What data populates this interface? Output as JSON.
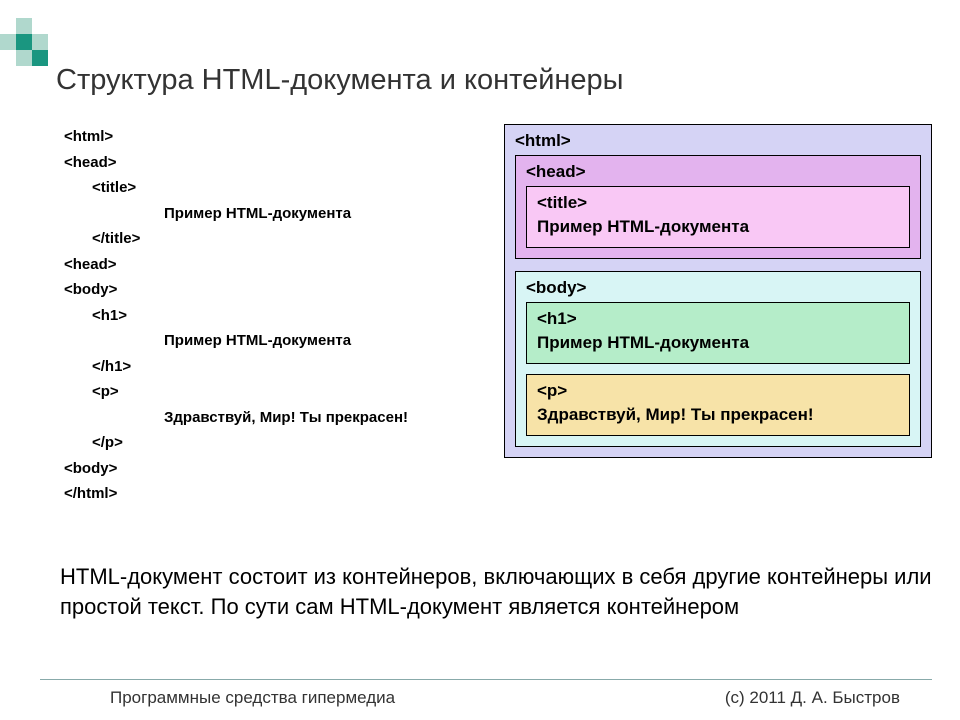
{
  "title": "Структура HTML-документа и контейнеры",
  "code": {
    "lines": [
      {
        "indent": "l1",
        "text": "<html>"
      },
      {
        "indent": "l1",
        "text": "<head>"
      },
      {
        "indent": "l2",
        "text": "<title>"
      },
      {
        "indent": "l4",
        "text": "Пример HTML-документа"
      },
      {
        "indent": "l2",
        "text": "</title>"
      },
      {
        "indent": "l1",
        "text": "<head>"
      },
      {
        "indent": "l1",
        "text": "<body>"
      },
      {
        "indent": "l2",
        "text": "<h1>"
      },
      {
        "indent": "l4",
        "text": "Пример HTML-документа"
      },
      {
        "indent": "l2",
        "text": "</h1>"
      },
      {
        "indent": "l2",
        "text": "<p>"
      },
      {
        "indent": "l4",
        "text": "Здравствуй, Мир! Ты прекрасен!"
      },
      {
        "indent": "l2",
        "text": "</p>"
      },
      {
        "indent": "l1",
        "text": "<body>"
      },
      {
        "indent": "l1",
        "text": "</html>"
      }
    ]
  },
  "diagram": {
    "html": {
      "label": "<html>",
      "bg": "#d5d3f5"
    },
    "head": {
      "label": "<head>",
      "bg": "#e3b3ee"
    },
    "titleBox": {
      "label": "<title>",
      "bg": "#f9c8f5",
      "content": "Пример HTML-документа"
    },
    "body": {
      "label": "<body>",
      "bg": "#d8f5f5"
    },
    "h1": {
      "label": "<h1>",
      "bg": "#b5edc9",
      "content": "Пример HTML-документа"
    },
    "p": {
      "label": "<p>",
      "bg": "#f7e3a8",
      "content": "Здравствуй, Мир! Ты прекрасен!"
    }
  },
  "paragraph": "HTML-документ состоит из контейнеров, включающих в себя другие контейнеры или простой текст. По сути сам HTML-документ является контейнером",
  "footer": {
    "left": "Программные средства гипермедиа",
    "right": "(с) 2011    Д. А. Быстров"
  },
  "logo_colors": {
    "a": "#1a9680",
    "b": "#b0d8cd"
  }
}
